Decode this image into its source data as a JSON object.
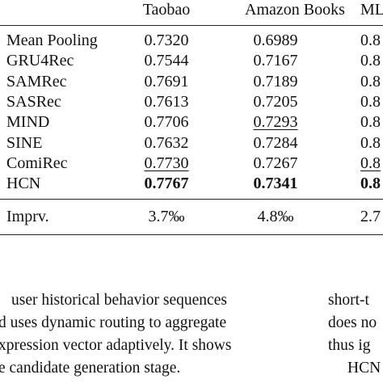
{
  "table": {
    "header": [
      "Taobao",
      "Amazon Books",
      "ML"
    ],
    "rows": [
      [
        "Mean Pooling",
        "0.7320",
        "0.6989",
        "0.8"
      ],
      [
        "GRU4Rec",
        "0.7544",
        "0.7167",
        "0.8"
      ],
      [
        "SAMRec",
        "0.7691",
        "0.7189",
        "0.8"
      ],
      [
        "SASRec",
        "0.7613",
        "0.7205",
        "0.8"
      ],
      [
        "MIND",
        "0.7706",
        "0.7293",
        "0.8"
      ],
      [
        "SINE",
        "0.7632",
        "0.7284",
        "0.8"
      ],
      [
        "ComiRec",
        "0.7730",
        "0.7267",
        "0.8"
      ],
      [
        "HCN",
        "0.7767",
        "0.7341",
        "0.8"
      ]
    ],
    "improvement": [
      "Imprv.",
      "3.7‰",
      "4.8‰",
      "2.7"
    ]
  },
  "text": {
    "left": [
      "user historical behavior sequences",
      "d uses dynamic routing to aggregate",
      "xpression vector adaptively. It shows",
      "e candidate generation stage."
    ],
    "right": [
      "short-t",
      "does no",
      "thus ig",
      "HCN"
    ]
  }
}
